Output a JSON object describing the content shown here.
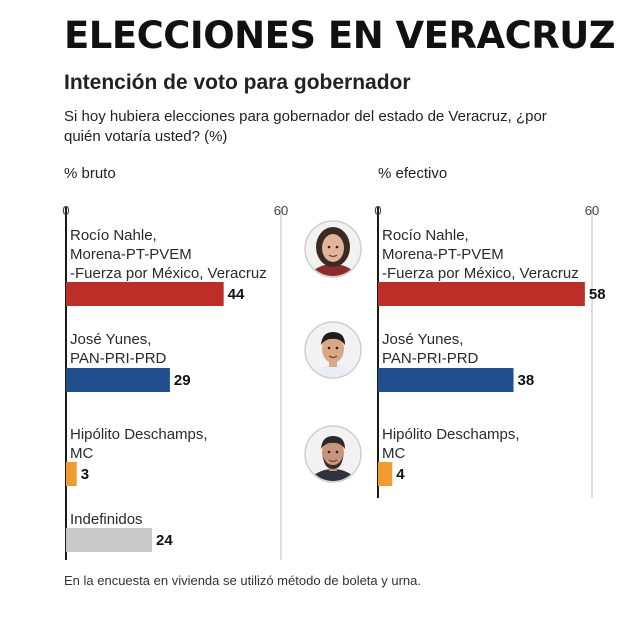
{
  "header": {
    "title": "ELECCIONES EN VERACRUZ",
    "subtitle": "Intención de voto para gobernador",
    "question": "Si hoy hubiera elecciones para gobernador del estado de Veracruz, ¿por quién votaría usted? (%)"
  },
  "footnote": "En la encuesta en vivienda se utilizó método de boleta y urna.",
  "colors": {
    "morena": "#bb2f28",
    "pan": "#1f4f8f",
    "mc": "#f19b30",
    "undecided": "#c9c9c9",
    "axis": "#1a1a1a",
    "grid": "#bfbfbf"
  },
  "portraits": [
    {
      "name": "portrait-rocio-nahle",
      "skin": "#e2b49a",
      "hair": "#3a2a22",
      "clothes": "#8d2a2a"
    },
    {
      "name": "portrait-jose-yunes",
      "skin": "#d9a886",
      "hair": "#1e1e1e",
      "clothes": "#e9eef4"
    },
    {
      "name": "portrait-hipolito-deschamps",
      "skin": "#c89578",
      "hair": "#2a2a2a",
      "clothes": "#2d3440"
    }
  ],
  "chart_data": [
    {
      "type": "bar",
      "panel_label": "% bruto",
      "xlim": [
        0,
        60
      ],
      "tick_labels": [
        "0",
        "60"
      ],
      "categories": [
        [
          "Rocío Nahle,",
          "Morena-PT-PVEM",
          "-Fuerza por México, Veracruz"
        ],
        [
          "José Yunes,",
          "PAN-PRI-PRD"
        ],
        [
          "Hipólito Deschamps,",
          "MC"
        ],
        [
          "Indefinidos"
        ]
      ],
      "values": [
        44,
        29,
        3,
        24
      ],
      "colors": [
        "#bb2f28",
        "#1f4f8f",
        "#f19b30",
        "#c9c9c9"
      ]
    },
    {
      "type": "bar",
      "panel_label": "% efectivo",
      "xlim": [
        0,
        60
      ],
      "tick_labels": [
        "0",
        "60"
      ],
      "categories": [
        [
          "Rocío Nahle,",
          "Morena-PT-PVEM",
          "-Fuerza por México, Veracruz"
        ],
        [
          "José Yunes,",
          "PAN-PRI-PRD"
        ],
        [
          "Hipólito Deschamps,",
          "MC"
        ]
      ],
      "values": [
        58,
        38,
        4
      ],
      "colors": [
        "#bb2f28",
        "#1f4f8f",
        "#f19b30"
      ]
    }
  ]
}
